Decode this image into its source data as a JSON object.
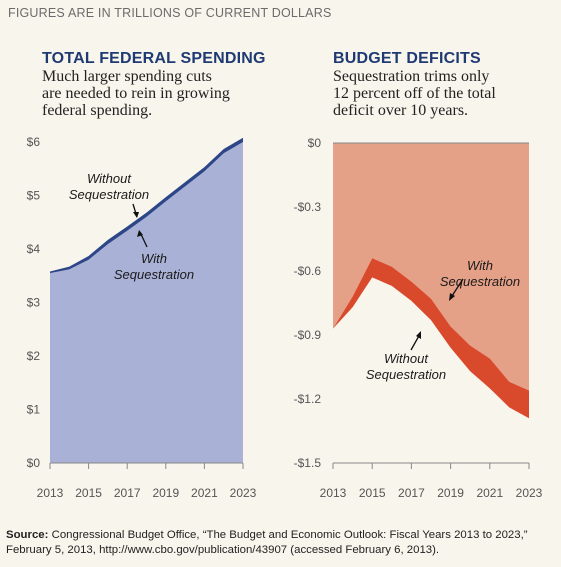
{
  "header": {
    "caption": "FIGURES ARE IN TRILLIONS OF CURRENT DOLLARS"
  },
  "colors": {
    "spending_area": "#a9b2d6",
    "spending_line": "#2c4688",
    "deficit_area": "#e5a088",
    "deficit_band": "#d9492b",
    "title": "#1f3a73",
    "background": "#f8f5ec"
  },
  "chart_data": [
    {
      "type": "area",
      "title": "TOTAL FEDERAL SPENDING",
      "subtitle": "Much larger spending cuts\nare needed to rein in growing\nfederal spending.",
      "xlabel": "",
      "ylabel": "",
      "x": [
        2013,
        2014,
        2015,
        2016,
        2017,
        2018,
        2019,
        2020,
        2021,
        2022,
        2023
      ],
      "x_ticks": [
        "2013",
        "2015",
        "2017",
        "2019",
        "2021",
        "2023"
      ],
      "y_ticks": [
        "$0",
        "$1",
        "$2",
        "$3",
        "$4",
        "$5",
        "$6"
      ],
      "ylim": [
        0,
        6
      ],
      "grid": false,
      "series": [
        {
          "name": "Without Sequestration",
          "values": [
            3.58,
            3.67,
            3.87,
            4.17,
            4.42,
            4.68,
            4.97,
            5.25,
            5.53,
            5.87,
            6.08
          ]
        },
        {
          "name": "With Sequestration",
          "values": [
            3.55,
            3.62,
            3.8,
            4.09,
            4.34,
            4.6,
            4.89,
            5.17,
            5.45,
            5.79,
            6.0
          ]
        }
      ]
    },
    {
      "type": "area",
      "title": "BUDGET DEFICITS",
      "subtitle": "Sequestration trims only\n12 percent off of the total\ndeficit over 10 years.",
      "xlabel": "",
      "ylabel": "",
      "x": [
        2013,
        2014,
        2015,
        2016,
        2017,
        2018,
        2019,
        2020,
        2021,
        2022,
        2023
      ],
      "x_ticks": [
        "2013",
        "2015",
        "2017",
        "2019",
        "2021",
        "2023"
      ],
      "y_ticks": [
        "$0",
        "-$0.3",
        "-$0.6",
        "-$0.9",
        "-$1.2",
        "-$1.5"
      ],
      "ylim": [
        -1.5,
        0
      ],
      "grid": false,
      "series": [
        {
          "name": "With Sequestration",
          "values": [
            -0.87,
            -0.72,
            -0.54,
            -0.58,
            -0.65,
            -0.73,
            -0.86,
            -0.95,
            -1.01,
            -1.12,
            -1.16
          ]
        },
        {
          "name": "Without Sequestration",
          "values": [
            -0.87,
            -0.77,
            -0.63,
            -0.67,
            -0.74,
            -0.83,
            -0.96,
            -1.07,
            -1.15,
            -1.24,
            -1.29
          ]
        }
      ]
    }
  ],
  "annotations": {
    "left_without": [
      "Without",
      "Sequestration"
    ],
    "left_with": [
      "With",
      "Sequestration"
    ],
    "right_with": [
      "With",
      "Sequestration"
    ],
    "right_without": [
      "Without",
      "Sequestration"
    ]
  },
  "source": {
    "label": "Source:",
    "text": " Congressional Budget Office, “The Budget and Economic Outlook: Fiscal Years 2013 to 2023,” February 5, 2013, http://www.cbo.gov/publication/43907 (accessed February 6, 2013)."
  }
}
